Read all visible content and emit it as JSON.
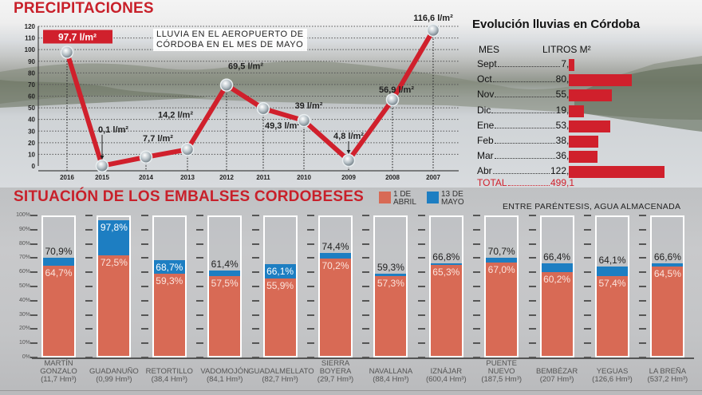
{
  "header": {
    "title": "PRECIPITACIONES",
    "note_line1": "LLUVIA EN EL AEROPUERTO DE",
    "note_line2": "CÓRDOBA EN EL MES DE MAYO"
  },
  "monthly": {
    "title": "Evolución lluvias en Córdoba",
    "col_month": "MES",
    "col_value": "LITROS M²",
    "rows": [
      {
        "month": "Sept",
        "label": "7,4",
        "value": 7.4
      },
      {
        "month": "Oct",
        "label": "80,7",
        "value": 80.7
      },
      {
        "month": "Nov",
        "label": "55,3",
        "value": 55.3
      },
      {
        "month": "Dic",
        "label": "19,2",
        "value": 19.2
      },
      {
        "month": "Ene",
        "label": "53,1",
        "value": 53.1
      },
      {
        "month": "Feb",
        "label": "38,3",
        "value": 38.3
      },
      {
        "month": "Mar",
        "label": "36,4",
        "value": 36.4
      },
      {
        "month": "Abr",
        "label": "122,7",
        "value": 122.7
      }
    ],
    "total_label": "TOTAL",
    "total_value": "499,1"
  },
  "reservoirs": {
    "title": "SITUACIÓN DE LOS EMBALSES CORDOBESES",
    "legend": [
      {
        "label_l1": "1 DE",
        "label_l2": "ABRIL",
        "color": "#d86a55"
      },
      {
        "label_l1": "13 DE",
        "label_l2": "MAYO",
        "color": "#1d7ec2"
      }
    ],
    "note": "ENTRE PARÉNTESIS, AGUA ALMACENADA",
    "yticks": [
      "100%",
      "90%",
      "80%",
      "70%",
      "60%",
      "50%",
      "40%",
      "30%",
      "20%",
      "10%",
      "0%"
    ]
  },
  "chart_data": [
    {
      "type": "line",
      "title": "PRECIPITACIONES",
      "subtitle": "LLUVIA EN EL AEROPUERTO DE CÓRDOBA EN EL MES DE MAYO",
      "x": [
        "2016",
        "2015",
        "2014",
        "2013",
        "2012",
        "2011",
        "2010",
        "2009",
        "2008",
        "2007"
      ],
      "values": [
        97.7,
        0.1,
        7.7,
        14.2,
        69.5,
        49.3,
        39,
        4.8,
        56.9,
        116.6
      ],
      "labels": [
        "97,7 l/m²",
        "0,1 l/m²",
        "7,7 l/m²",
        "14,2 l/m²",
        "69,5 l/m²",
        "49,3 l/m²",
        "39 l/m²",
        "4,8 l/m²",
        "56,9 l/m²",
        "116,6 l/m²"
      ],
      "yticks": [
        "0",
        "10",
        "20",
        "30",
        "40",
        "50",
        "60",
        "70",
        "80",
        "90",
        "100",
        "110",
        "120"
      ],
      "ylim": [
        0,
        120
      ],
      "xlabel": "",
      "ylabel": "",
      "grid": true,
      "color": "#d0202c"
    },
    {
      "type": "bar",
      "title": "Evolución lluvias en Córdoba",
      "orientation": "horizontal",
      "categories": [
        "Sept",
        "Oct",
        "Nov",
        "Dic",
        "Ene",
        "Feb",
        "Mar",
        "Abr"
      ],
      "values": [
        7.4,
        80.7,
        55.3,
        19.2,
        53.1,
        38.3,
        36.4,
        122.7
      ],
      "total": 499.1,
      "xlabel": "LITROS M²",
      "ylabel": "MES",
      "color": "#d0202c"
    },
    {
      "type": "bar",
      "title": "SITUACIÓN DE LOS EMBALSES CORDOBESES",
      "categories": [
        "MARTÍN GONZALO",
        "GUADANUÑO",
        "RETORTILLO",
        "VADOMOJÓN",
        "GUADALMELLATO",
        "SIERRA BOYERA",
        "NAVALLANA",
        "IZNÁJAR",
        "PUENTE NUEVO",
        "BEMBÉZAR",
        "YEGUAS",
        "LA BREÑA"
      ],
      "storage": [
        "(11,7 Hm³)",
        "(0,99 Hm³)",
        "(38,4 Hm³)",
        "(84,1 Hm³)",
        "(82,7 Hm³)",
        "(29,7 Hm³)",
        "(88,4 Hm³)",
        "(600,4 Hm³)",
        "(187,5 Hm³)",
        "(207 Hm³)",
        "(126,6 Hm³)",
        "(537,2 Hm³)"
      ],
      "series": [
        {
          "name": "1 DE ABRIL",
          "values": [
            64.7,
            72.5,
            59.3,
            57.5,
            55.9,
            70.2,
            57.3,
            65.3,
            67.0,
            60.2,
            57.4,
            64.5
          ],
          "labels": [
            "64,7%",
            "72,5%",
            "59,3%",
            "57,5%",
            "55,9%",
            "70,2%",
            "57,3%",
            "65,3%",
            "67,0%",
            "60,2%",
            "57,4%",
            "64,5%"
          ]
        },
        {
          "name": "13 DE MAYO",
          "values": [
            70.9,
            97.8,
            68.7,
            61.4,
            66.1,
            74.4,
            59.3,
            66.8,
            70.7,
            66.4,
            64.1,
            66.6
          ],
          "labels": [
            "70,9%",
            "97,8%",
            "68,7%",
            "61,4%",
            "66,1%",
            "74,4%",
            "59,3%",
            "66,8%",
            "70,7%",
            "66,4%",
            "64,1%",
            "66,6%"
          ]
        }
      ],
      "ylim": [
        0,
        100
      ],
      "yticks": [
        "0%",
        "10%",
        "20%",
        "30%",
        "40%",
        "50%",
        "60%",
        "70%",
        "80%",
        "90%",
        "100%"
      ],
      "legend": "top-right"
    }
  ]
}
